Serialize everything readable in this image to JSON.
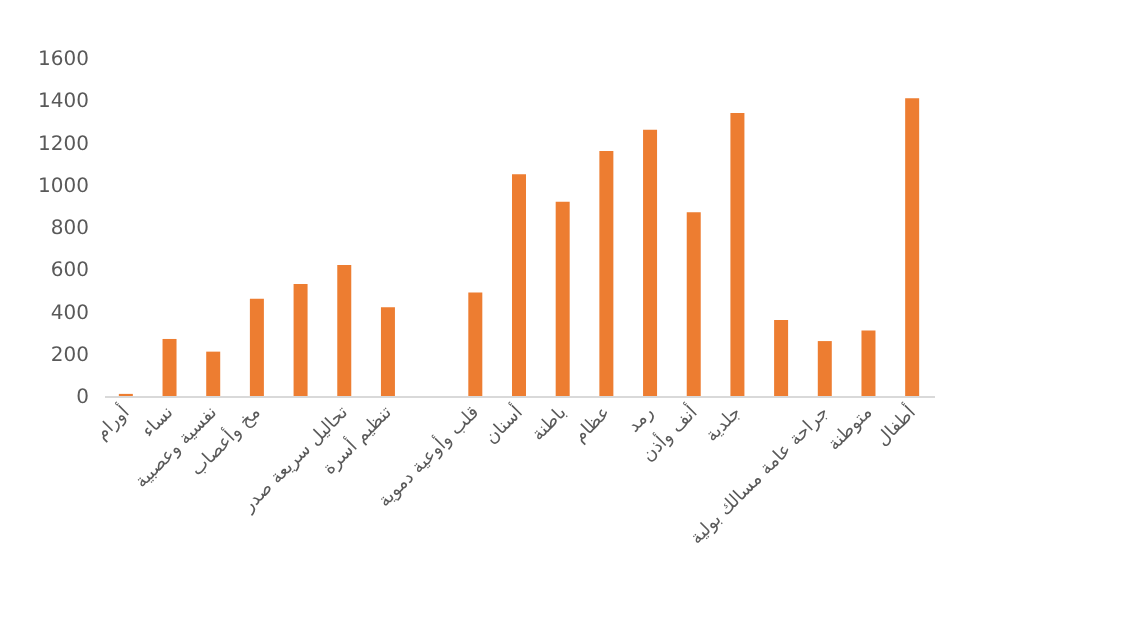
{
  "chart_data": {
    "type": "bar",
    "categories": [
      "أورام",
      "نساء",
      "نفسية وعصبية",
      "مخ وأعصاب",
      null,
      "تحاليل سريعة صدر",
      "تنظيم أسرة",
      null,
      "قلب وأوعية دموية",
      "أسنان",
      "باطنة",
      "عظام",
      "رمد",
      "أنف وأذن",
      "جلدية",
      null,
      "جراحة عامة مسالك بولية",
      "متوطنة",
      "أطفال"
    ],
    "values": [
      10,
      270,
      210,
      460,
      530,
      620,
      420,
      null,
      490,
      1050,
      920,
      1160,
      1260,
      870,
      1340,
      360,
      260,
      310,
      1410
    ],
    "color": "#ed7d31",
    "ylim": [
      0,
      1600
    ],
    "yticks": [
      0,
      200,
      400,
      600,
      800,
      1000,
      1200,
      1400,
      1600
    ],
    "grid": false
  }
}
